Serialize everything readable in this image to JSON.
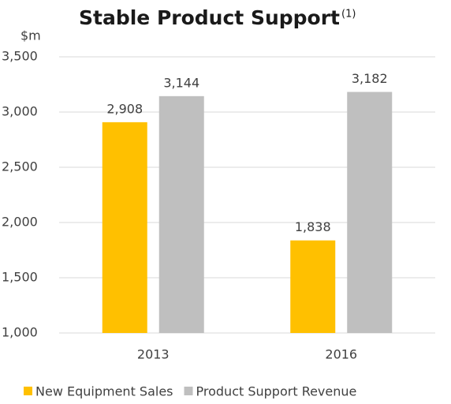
{
  "chart_data": {
    "type": "bar",
    "title": "Stable Product Support",
    "title_superscript": "(1)",
    "y_label": "$m",
    "categories": [
      "2013",
      "2016"
    ],
    "series": [
      {
        "name": "New Equipment Sales",
        "color": "#FFC000",
        "values": [
          2908,
          1838
        ],
        "value_labels": [
          "2,908",
          "1,838"
        ]
      },
      {
        "name": "Product Support Revenue",
        "color": "#BFBFBF",
        "values": [
          3144,
          3182
        ],
        "value_labels": [
          "3,144",
          "3,182"
        ]
      }
    ],
    "ylim": [
      1000,
      3500
    ],
    "yticks": [
      {
        "value": 1000,
        "label": "1,000"
      },
      {
        "value": 1500,
        "label": "1,500"
      },
      {
        "value": 2000,
        "label": "2,000"
      },
      {
        "value": 2500,
        "label": "2,500"
      },
      {
        "value": 3000,
        "label": "3,000"
      },
      {
        "value": 3500,
        "label": "3,500"
      }
    ],
    "grid": true,
    "legend": "bottom"
  }
}
